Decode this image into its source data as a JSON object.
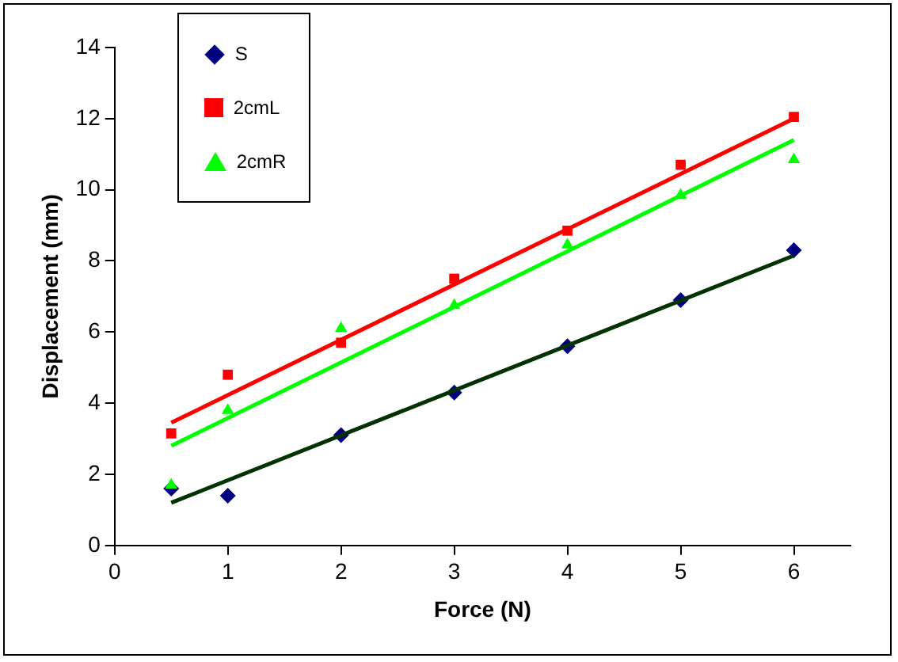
{
  "chart_data": {
    "type": "scatter",
    "xlabel": "Force (N)",
    "ylabel": "Displacement (mm)",
    "xlim": [
      0,
      6.5
    ],
    "xticks": [
      0,
      1,
      2,
      3,
      4,
      5,
      6
    ],
    "ylim": [
      0,
      14
    ],
    "yticks": [
      0,
      2,
      4,
      6,
      8,
      10,
      12,
      14
    ],
    "grid": false,
    "legend": "top left",
    "series": [
      {
        "name": "S",
        "color": "#000080",
        "marker": "diamond",
        "x": [
          0.5,
          1,
          2,
          3,
          4,
          5,
          6
        ],
        "values": [
          1.6,
          1.4,
          3.1,
          4.3,
          5.6,
          6.9,
          8.3
        ]
      },
      {
        "name": "2cmL",
        "color": "#ff0000",
        "marker": "square",
        "x": [
          0.5,
          1,
          2,
          3,
          4,
          5,
          6
        ],
        "values": [
          3.15,
          4.8,
          5.7,
          7.5,
          8.85,
          10.7,
          12.05
        ]
      },
      {
        "name": "2cmR",
        "color": "#00ff00",
        "marker": "triangle",
        "x": [
          0.5,
          1,
          2,
          3,
          4,
          5,
          6
        ],
        "values": [
          1.7,
          3.8,
          6.1,
          6.75,
          8.45,
          9.85,
          10.85
        ]
      },
      {
        "type": "line",
        "color": "#003300",
        "marker": "none",
        "x": [
          0.5,
          6
        ],
        "values": [
          1.2,
          8.15
        ]
      },
      {
        "type": "line",
        "color": "#ff0000",
        "marker": "none",
        "x": [
          0.5,
          6
        ],
        "values": [
          3.45,
          12.0
        ]
      },
      {
        "type": "line",
        "color": "#00ff00",
        "marker": "none",
        "x": [
          0.5,
          6
        ],
        "values": [
          2.8,
          11.4
        ]
      }
    ]
  }
}
